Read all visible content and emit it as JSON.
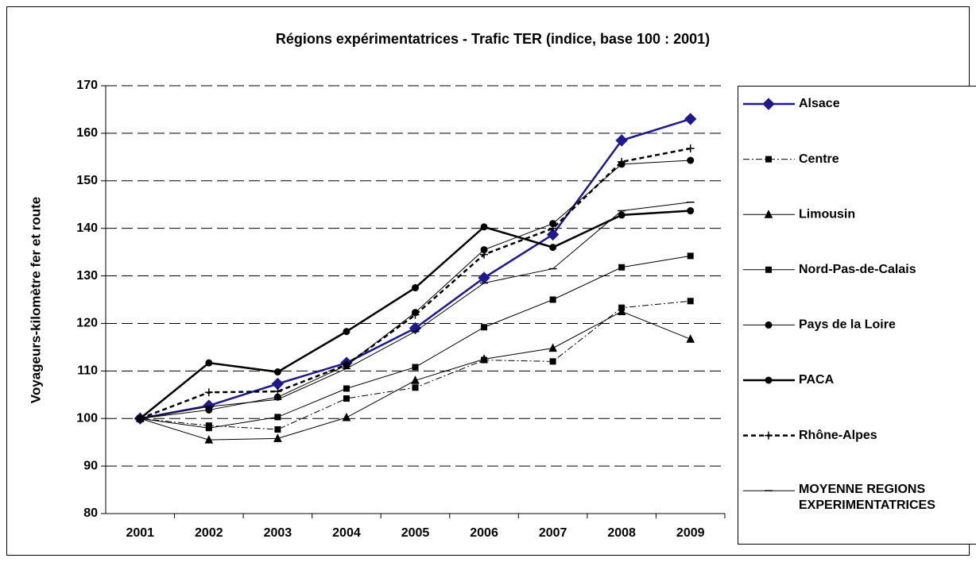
{
  "chart_data": {
    "type": "line",
    "title": "Régions expérimentatrices - Trafic TER (indice, base 100 : 2001)",
    "y_label": "Voyageurs-kilomètre fer et route",
    "categories": [
      "2001",
      "2002",
      "2003",
      "2004",
      "2005",
      "2006",
      "2007",
      "2008",
      "2009"
    ],
    "ylim": [
      80,
      170
    ],
    "yticks": [
      80,
      90,
      100,
      110,
      120,
      130,
      140,
      150,
      160,
      170
    ],
    "grid": true,
    "series": [
      {
        "name": "Alsace",
        "color": "#1f1a8c",
        "marker": "diamond",
        "line_style": "solid",
        "line_width": 2.5,
        "values": [
          100,
          102.7,
          107.3,
          111.7,
          119,
          129.6,
          138.7,
          158.5,
          163
        ]
      },
      {
        "name": "Centre",
        "color": "#000000",
        "marker": "square",
        "line_style": "dashdot",
        "line_width": 1,
        "values": [
          100,
          98.5,
          97.7,
          104.2,
          106.5,
          112.3,
          112,
          123.3,
          124.7
        ]
      },
      {
        "name": "Limousin",
        "color": "#000000",
        "marker": "triangle",
        "line_style": "solid",
        "line_width": 1,
        "values": [
          100,
          95.5,
          95.8,
          100.2,
          108,
          112.5,
          114.8,
          122.5,
          116.7
        ]
      },
      {
        "name": "Nord-Pas-de-Calais",
        "color": "#000000",
        "marker": "square",
        "line_style": "solid",
        "line_width": 1,
        "values": [
          100,
          98,
          100.3,
          106.3,
          110.8,
          119.2,
          125,
          131.8,
          134.2
        ]
      },
      {
        "name": "Pays de la Loire",
        "color": "#000000",
        "marker": "circle",
        "line_style": "solid",
        "line_width": 1,
        "values": [
          100,
          101.8,
          104.5,
          111.2,
          122.3,
          135.5,
          141,
          153.5,
          154.3
        ]
      },
      {
        "name": "PACA",
        "color": "#000000",
        "marker": "circle",
        "line_style": "solid",
        "line_width": 2.5,
        "values": [
          100,
          111.7,
          109.8,
          118.3,
          127.5,
          140.3,
          136,
          142.8,
          143.7
        ]
      },
      {
        "name": "Rhône-Alpes",
        "color": "#000000",
        "marker": "plus",
        "line_style": "dashed",
        "line_width": 2.5,
        "values": [
          100,
          105.5,
          105.7,
          111.3,
          121.8,
          134.5,
          140,
          154,
          156.8
        ]
      },
      {
        "name": "MOYENNE REGIONS EXPERIMENTATRICES",
        "color": "#000000",
        "marker": "dash",
        "line_style": "solid",
        "line_width": 1,
        "values": [
          100,
          102.5,
          104,
          110.5,
          118.3,
          128.5,
          131.5,
          143.7,
          145.5
        ]
      }
    ]
  }
}
